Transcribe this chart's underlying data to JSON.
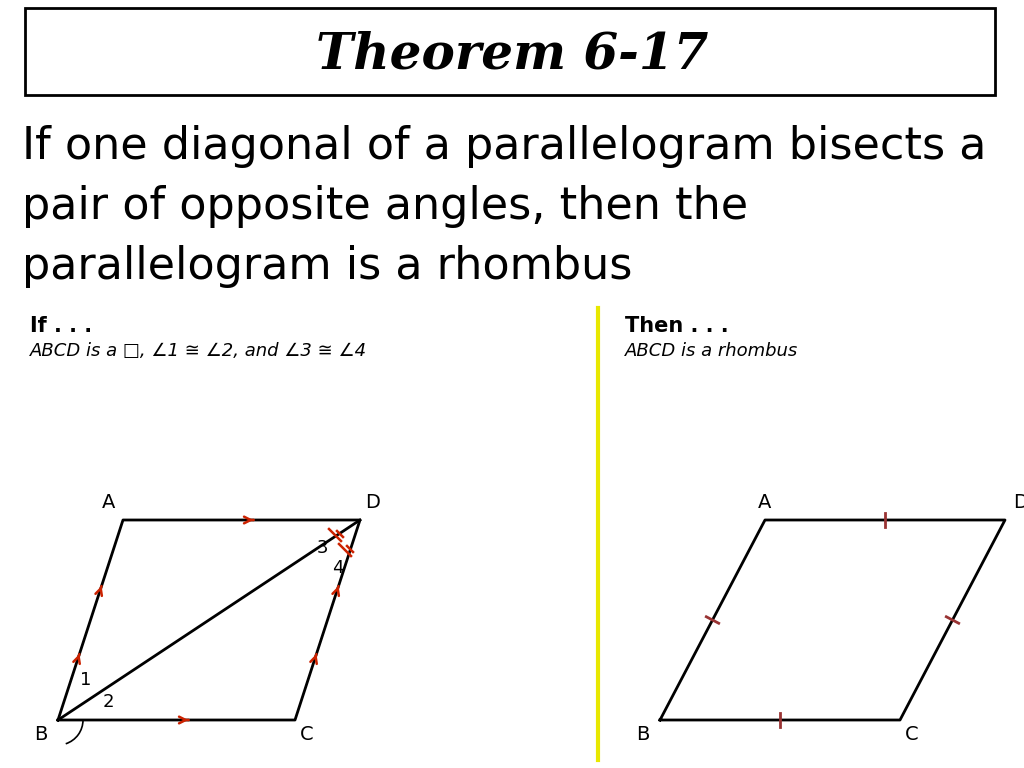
{
  "title": "Theorem 6-17",
  "body_line1": "If one diagonal of a parallelogram bisects a",
  "body_line2": "pair of opposite angles, then the",
  "body_line3": "parallelogram is a rhombus",
  "if_label": "If . . .",
  "if_sub": "ABCD is a □, ∠1 ≅ ∠2, and ∠3 ≅ ∠4",
  "then_label": "Then . . .",
  "then_sub": "ABCD is a rhombus",
  "bg_color": "#ffffff",
  "title_box_color": "#000000",
  "divider_color": "#e8e800",
  "arrow_color": "#cc2200",
  "tick_color": "#993333",
  "line_color": "#000000"
}
